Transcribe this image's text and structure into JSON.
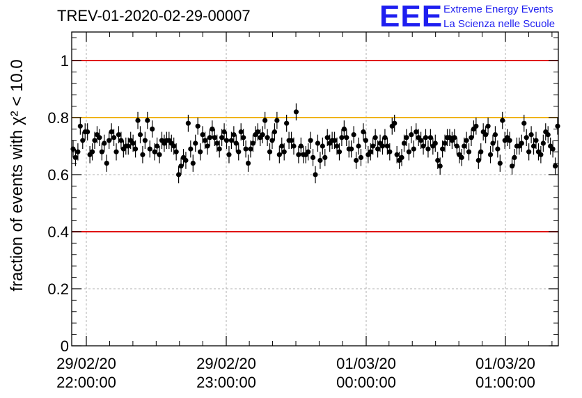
{
  "title": "TREV-01-2020-02-29-00007",
  "logo": {
    "mark": "EEE",
    "line1": "Extreme Energy Events",
    "line2": "La Scienza nelle Scuole",
    "color": "#1e1ef0"
  },
  "chart_data": {
    "type": "scatter",
    "ylabel": "fraction of events with χ² < 10.0",
    "ylim": [
      0,
      1.1
    ],
    "y_ticks": [
      0,
      0.2,
      0.4,
      0.6,
      0.8,
      1
    ],
    "y_tick_labels": [
      "0",
      "0.2",
      "0.4",
      "0.6",
      "0.8",
      "1"
    ],
    "x_tick_labels": [
      [
        "29/02/20",
        "22:00:00"
      ],
      [
        "29/02/20",
        "23:00:00"
      ],
      [
        "01/03/20",
        "00:00:00"
      ],
      [
        "01/03/20",
        "01:00:00"
      ]
    ],
    "x_axis_time_range": [
      "29/02/20 21:53",
      "01/03/20 01:23"
    ],
    "grid": true,
    "reference_lines": [
      {
        "y": 1.0,
        "color": "#e00000"
      },
      {
        "y": 0.8,
        "color": "#f0b400"
      },
      {
        "y": 0.4,
        "color": "#e00000"
      }
    ],
    "series": [
      {
        "marker_color": "#000000",
        "error": 0.03,
        "values": [
          0.69,
          0.66,
          0.68,
          0.77,
          0.72,
          0.75,
          0.75,
          0.67,
          0.68,
          0.72,
          0.74,
          0.73,
          0.68,
          0.71,
          0.64,
          0.72,
          0.75,
          0.73,
          0.68,
          0.74,
          0.72,
          0.69,
          0.7,
          0.7,
          0.72,
          0.71,
          0.69,
          0.79,
          0.74,
          0.67,
          0.72,
          0.79,
          0.69,
          0.76,
          0.68,
          0.7,
          0.67,
          0.72,
          0.71,
          0.72,
          0.72,
          0.71,
          0.7,
          0.68,
          0.6,
          0.63,
          0.66,
          0.65,
          0.78,
          0.69,
          0.64,
          0.71,
          0.77,
          0.68,
          0.74,
          0.72,
          0.7,
          0.73,
          0.76,
          0.73,
          0.71,
          0.69,
          0.73,
          0.75,
          0.72,
          0.67,
          0.72,
          0.74,
          0.71,
          0.68,
          0.75,
          0.73,
          0.69,
          0.64,
          0.69,
          0.71,
          0.74,
          0.75,
          0.73,
          0.74,
          0.79,
          0.73,
          0.68,
          0.72,
          0.75,
          0.79,
          0.67,
          0.7,
          0.68,
          0.78,
          0.72,
          0.72,
          0.7,
          0.82,
          0.67,
          0.7,
          0.67,
          0.67,
          0.68,
          0.72,
          0.66,
          0.6,
          0.71,
          0.65,
          0.7,
          0.66,
          0.73,
          0.71,
          0.72,
          0.72,
          0.7,
          0.68,
          0.73,
          0.76,
          0.73,
          0.69,
          0.69,
          0.74,
          0.65,
          0.7,
          0.66,
          0.75,
          0.72,
          0.67,
          0.68,
          0.7,
          0.73,
          0.69,
          0.71,
          0.7,
          0.73,
          0.7,
          0.68,
          0.77,
          0.78,
          0.67,
          0.65,
          0.66,
          0.71,
          0.73,
          0.68,
          0.74,
          0.69,
          0.75,
          0.73,
          0.72,
          0.7,
          0.73,
          0.69,
          0.73,
          0.7,
          0.71,
          0.65,
          0.63,
          0.69,
          0.71,
          0.73,
          0.73,
          0.72,
          0.73,
          0.7,
          0.67,
          0.66,
          0.7,
          0.72,
          0.68,
          0.73,
          0.76,
          0.77,
          0.65,
          0.68,
          0.75,
          0.74,
          0.77,
          0.67,
          0.71,
          0.74,
          0.69,
          0.64,
          0.79,
          0.72,
          0.73,
          0.72,
          0.63,
          0.66,
          0.7,
          0.7,
          0.71,
          0.78,
          0.73,
          0.68,
          0.74,
          0.7,
          0.72,
          0.68,
          0.67,
          0.71,
          0.75,
          0.74,
          0.7,
          0.69,
          0.63,
          0.77
        ]
      }
    ]
  }
}
